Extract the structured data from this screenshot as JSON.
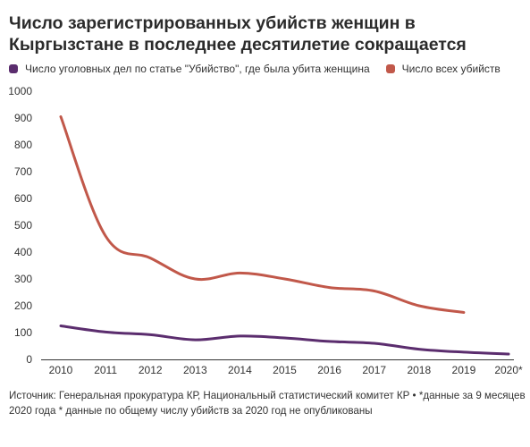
{
  "chart_data": {
    "type": "line",
    "title": "Число зарегистрированных убийств женщин в Кыргызстане в последнее десятилетие сокращается",
    "xlabel": "",
    "ylabel": "",
    "categories": [
      "2010",
      "2011",
      "2012",
      "2013",
      "2014",
      "2015",
      "2016",
      "2017",
      "2018",
      "2019",
      "2020*"
    ],
    "ylim": [
      0,
      1000
    ],
    "yticks": [
      "0",
      "100",
      "200",
      "300",
      "400",
      "500",
      "600",
      "700",
      "800",
      "900",
      "1000"
    ],
    "grid": false,
    "legend_position": "top-left",
    "series": [
      {
        "name": "Число уголовных дел по статье \"Убийство\", где была убита женщина",
        "color": "#5b2d6e",
        "values": [
          125,
          102,
          92,
          73,
          87,
          80,
          67,
          60,
          38,
          27,
          20
        ]
      },
      {
        "name": "Число всех убийств",
        "color": "#c1584a",
        "values": [
          905,
          460,
          378,
          300,
          322,
          300,
          268,
          255,
          200,
          175,
          null
        ]
      }
    ]
  },
  "source": "Источник: Генеральная прокуратура КР, Национальный статистический комитет КР • *данные за 9 месяцев 2020 года * данные по общему числу убийств за 2020 год не опубликованы"
}
